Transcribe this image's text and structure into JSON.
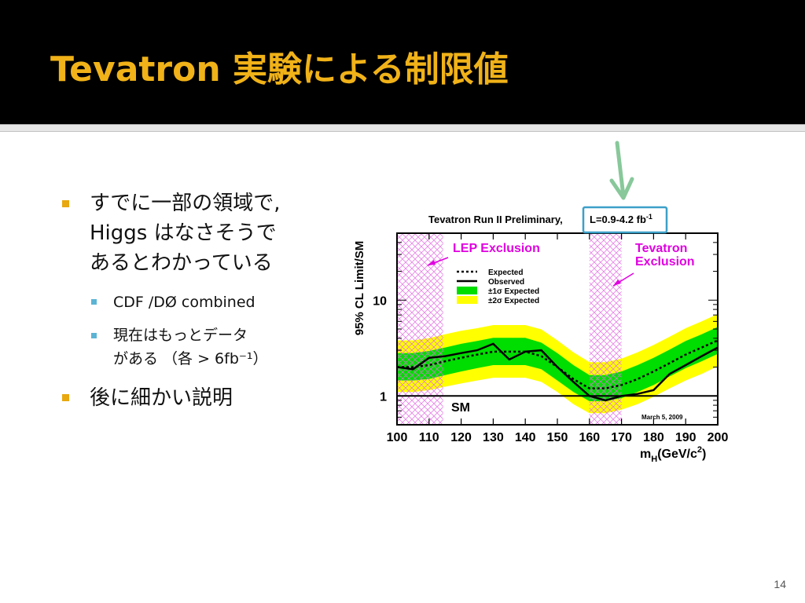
{
  "slide": {
    "title": "Tevatron 実験による制限値",
    "page_number": "14",
    "bullets": [
      {
        "line1": "すでに一部の領域で,",
        "line2": "Higgs はなさそうで",
        "line3": "あるとわかっている"
      },
      {
        "text": "CDF /DØ combined"
      },
      {
        "line1": "現在はもっとデータ",
        "line2": "がある （各 > 6fb⁻¹）"
      },
      {
        "text": "後に細かい説明"
      }
    ]
  },
  "colors": {
    "header_bg": "#000000",
    "title": "#f0b218",
    "bullet_marker": "#e8a80f",
    "sub_bullet_marker": "#5bb4d4",
    "band_2sigma": "#ffff00",
    "band_1sigma": "#00dd00",
    "exclusion": "#e000e0",
    "highlight_box": "#3ca0c8",
    "arrow": "#88c89a"
  },
  "chart_data": {
    "type": "line",
    "title": "Tevatron Run II Preliminary,",
    "luminosity": "L=0.9-4.2 fb",
    "luminosity_sup": "-1",
    "date": "March 5, 2009",
    "xlabel": "m",
    "xlabel_sub": "H",
    "xlabel_rest": "(GeV/c",
    "xlabel_sup": "2",
    "xlabel_end": ")",
    "ylabel": "95% CL Limit/SM",
    "xlim": [
      100,
      200
    ],
    "ylim": [
      0.5,
      50
    ],
    "yscale": "log",
    "x_ticks": [
      "100",
      "110",
      "120",
      "130",
      "140",
      "150",
      "160",
      "170",
      "180",
      "190",
      "200"
    ],
    "y_ticks": [
      {
        "value": 1,
        "label": "1"
      },
      {
        "value": 10,
        "label": "10"
      }
    ],
    "x": [
      100,
      105,
      110,
      115,
      120,
      125,
      130,
      135,
      140,
      145,
      150,
      155,
      160,
      165,
      170,
      175,
      180,
      185,
      190,
      195,
      200
    ],
    "series": [
      {
        "name": "Expected",
        "style": "dotted",
        "values": [
          2.0,
          2.0,
          2.1,
          2.3,
          2.5,
          2.7,
          2.9,
          2.9,
          2.9,
          2.6,
          2.0,
          1.5,
          1.2,
          1.2,
          1.3,
          1.5,
          1.8,
          2.2,
          2.7,
          3.2,
          3.8
        ]
      },
      {
        "name": "Observed",
        "style": "solid",
        "values": [
          2.0,
          1.9,
          2.5,
          2.6,
          2.8,
          3.0,
          3.5,
          2.4,
          2.9,
          3.0,
          2.0,
          1.4,
          1.0,
          0.9,
          1.0,
          1.05,
          1.15,
          1.7,
          2.1,
          2.6,
          3.2
        ]
      },
      {
        "name": "±1σ Expected",
        "style": "band",
        "lower": [
          1.45,
          1.45,
          1.5,
          1.65,
          1.8,
          1.95,
          2.1,
          2.1,
          2.1,
          1.9,
          1.45,
          1.1,
          0.88,
          0.88,
          0.95,
          1.1,
          1.3,
          1.6,
          1.95,
          2.3,
          2.75
        ],
        "upper": [
          2.8,
          2.8,
          2.95,
          3.2,
          3.5,
          3.75,
          4.05,
          4.05,
          4.05,
          3.6,
          2.8,
          2.1,
          1.65,
          1.65,
          1.8,
          2.1,
          2.5,
          3.05,
          3.75,
          4.4,
          5.25
        ]
      },
      {
        "name": "±2σ Expected",
        "style": "band",
        "lower": [
          1.1,
          1.1,
          1.15,
          1.25,
          1.35,
          1.45,
          1.55,
          1.55,
          1.55,
          1.4,
          1.1,
          0.82,
          0.66,
          0.66,
          0.72,
          0.82,
          0.98,
          1.2,
          1.45,
          1.7,
          2.05
        ],
        "upper": [
          3.8,
          3.8,
          4.0,
          4.4,
          4.8,
          5.1,
          5.5,
          5.5,
          5.5,
          4.95,
          3.8,
          2.85,
          2.25,
          2.25,
          2.45,
          2.85,
          3.4,
          4.15,
          5.1,
          6.0,
          7.15
        ]
      }
    ],
    "exclusion_regions": [
      {
        "name": "LEP Exclusion",
        "from": 100,
        "to": 114.4
      },
      {
        "name": "Tevatron Exclusion",
        "from": 160,
        "to": 170
      }
    ],
    "legend": [
      {
        "label": "Expected",
        "swatch": "dotted"
      },
      {
        "label": "Observed",
        "swatch": "solid"
      },
      {
        "label": "±1σ Expected",
        "swatch": "#00dd00"
      },
      {
        "label": "±2σ Expected",
        "swatch": "#ffff00"
      }
    ],
    "annotations": {
      "lep": "LEP Exclusion",
      "tev_line1": "Tevatron",
      "tev_line2": "Exclusion",
      "sm": "SM"
    },
    "grid": false,
    "legend_position": "top-left"
  }
}
